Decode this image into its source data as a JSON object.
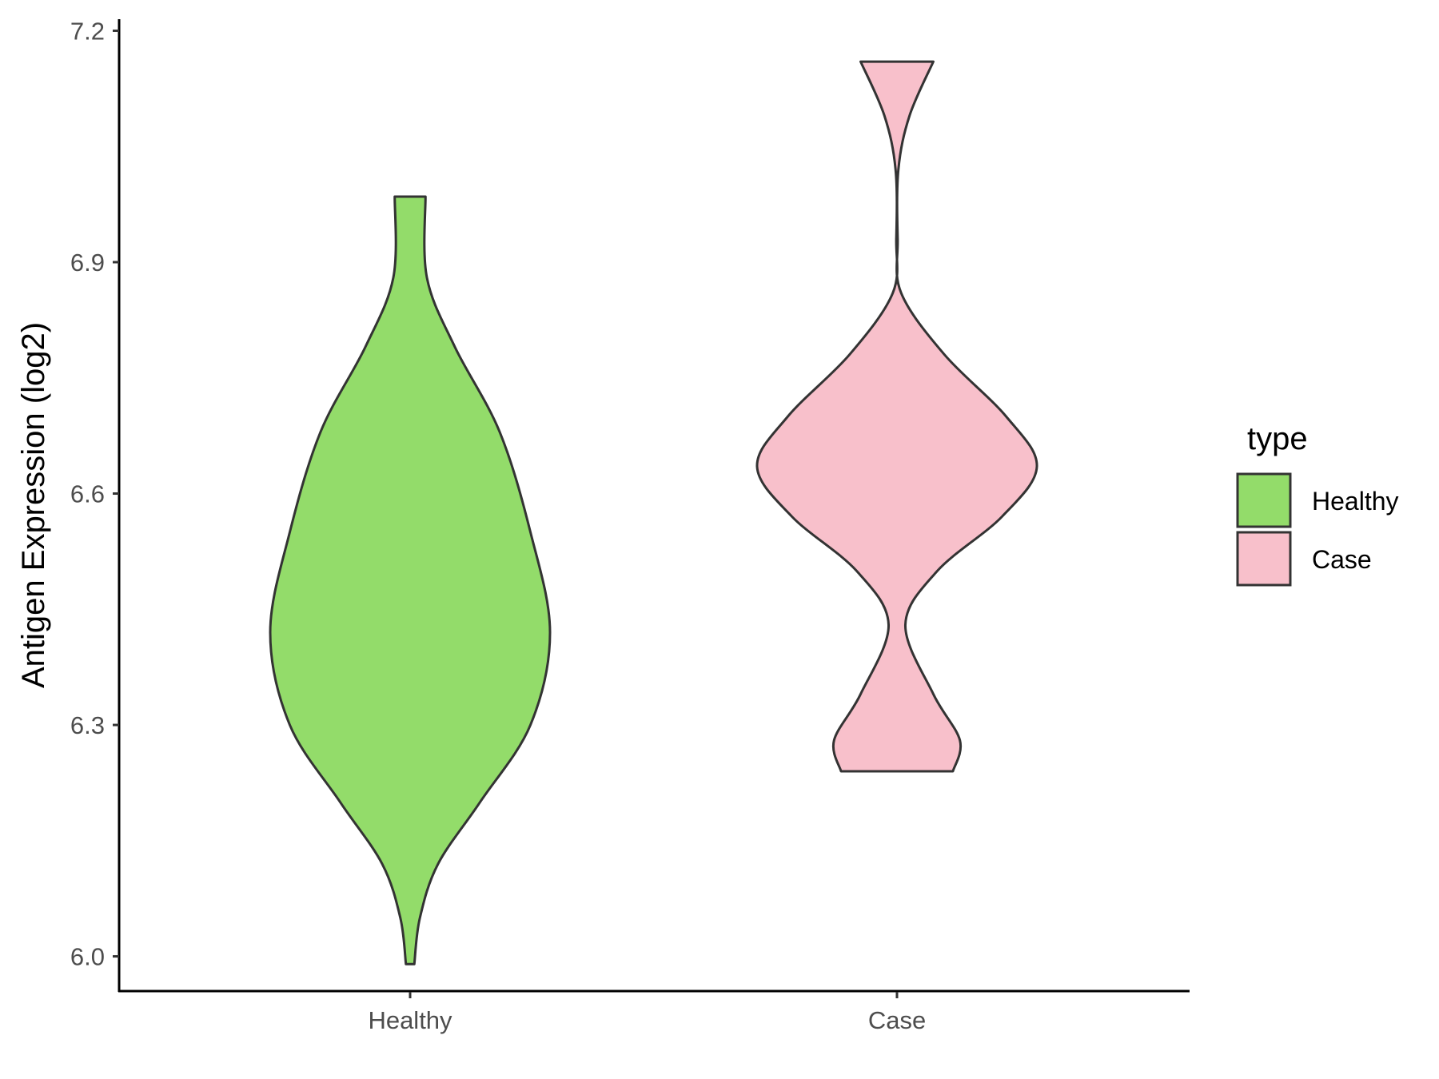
{
  "chart_data": {
    "type": "violin",
    "title": "",
    "xlabel": "",
    "ylabel": "Antigen Expression (log2)",
    "ylim": [
      5.955,
      7.215
    ],
    "yticks": [
      "6.0",
      "6.3",
      "6.6",
      "6.9",
      "7.2"
    ],
    "categories": [
      "Healthy",
      "Case"
    ],
    "series": [
      {
        "name": "Healthy",
        "color": "#93dc6a",
        "min": 5.99,
        "max": 6.985,
        "density": [
          {
            "y": 5.99,
            "w": 0.03
          },
          {
            "y": 6.05,
            "w": 0.07
          },
          {
            "y": 6.12,
            "w": 0.2
          },
          {
            "y": 6.2,
            "w": 0.5
          },
          {
            "y": 6.3,
            "w": 0.86
          },
          {
            "y": 6.42,
            "w": 1.0
          },
          {
            "y": 6.55,
            "w": 0.86
          },
          {
            "y": 6.68,
            "w": 0.64
          },
          {
            "y": 6.79,
            "w": 0.32
          },
          {
            "y": 6.88,
            "w": 0.12
          },
          {
            "y": 6.985,
            "w": 0.11
          }
        ]
      },
      {
        "name": "Case",
        "color": "#f8c0cb",
        "min": 6.24,
        "max": 7.16,
        "density": [
          {
            "y": 6.24,
            "w": 0.4
          },
          {
            "y": 6.28,
            "w": 0.45
          },
          {
            "y": 6.34,
            "w": 0.26
          },
          {
            "y": 6.43,
            "w": 0.06
          },
          {
            "y": 6.5,
            "w": 0.29
          },
          {
            "y": 6.57,
            "w": 0.75
          },
          {
            "y": 6.635,
            "w": 1.0
          },
          {
            "y": 6.7,
            "w": 0.78
          },
          {
            "y": 6.78,
            "w": 0.34
          },
          {
            "y": 6.86,
            "w": 0.03
          },
          {
            "y": 6.93,
            "w": 0.005
          },
          {
            "y": 7.02,
            "w": 0.01
          },
          {
            "y": 7.09,
            "w": 0.09
          },
          {
            "y": 7.16,
            "w": 0.26
          }
        ]
      }
    ],
    "legend": {
      "title": "type",
      "position": "right",
      "items": [
        "Healthy",
        "Case"
      ]
    },
    "grid": false
  }
}
